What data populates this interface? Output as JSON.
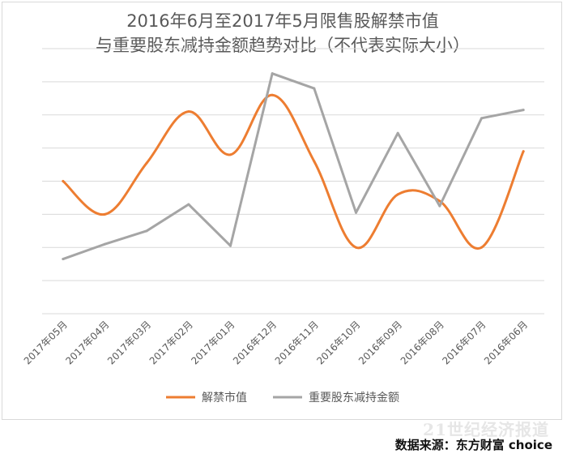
{
  "chart_data": {
    "type": "line",
    "title_line1": "2016年6月至2017年5月限售股解禁市值",
    "title_line2": "与重要股东减持金额趋势对比（不代表实际大小）",
    "categories": [
      "2017年05月",
      "2017年04月",
      "2017年03月",
      "2017年02月",
      "2017年01月",
      "2016年12月",
      "2016年11月",
      "2016年10月",
      "2016年09月",
      "2016年08月",
      "2016年07月",
      "2016年06月"
    ],
    "ylim": [
      0,
      8
    ],
    "grid": true,
    "legend_position": "bottom",
    "series": [
      {
        "name": "解禁市值",
        "color": "#ED7D31",
        "smooth": true,
        "values": [
          4.0,
          3.0,
          4.55,
          6.1,
          4.8,
          6.6,
          4.6,
          2.0,
          3.6,
          3.4,
          2.0,
          4.9
        ]
      },
      {
        "name": "重要股东减持金额",
        "color": "#A5A5A5",
        "smooth": false,
        "values": [
          1.65,
          2.1,
          2.5,
          3.3,
          2.05,
          7.25,
          6.8,
          3.05,
          5.45,
          3.25,
          5.9,
          6.15
        ]
      }
    ]
  },
  "footer": {
    "source": "数据来源：东方财富 choice",
    "watermark": "21世纪经济报道"
  }
}
